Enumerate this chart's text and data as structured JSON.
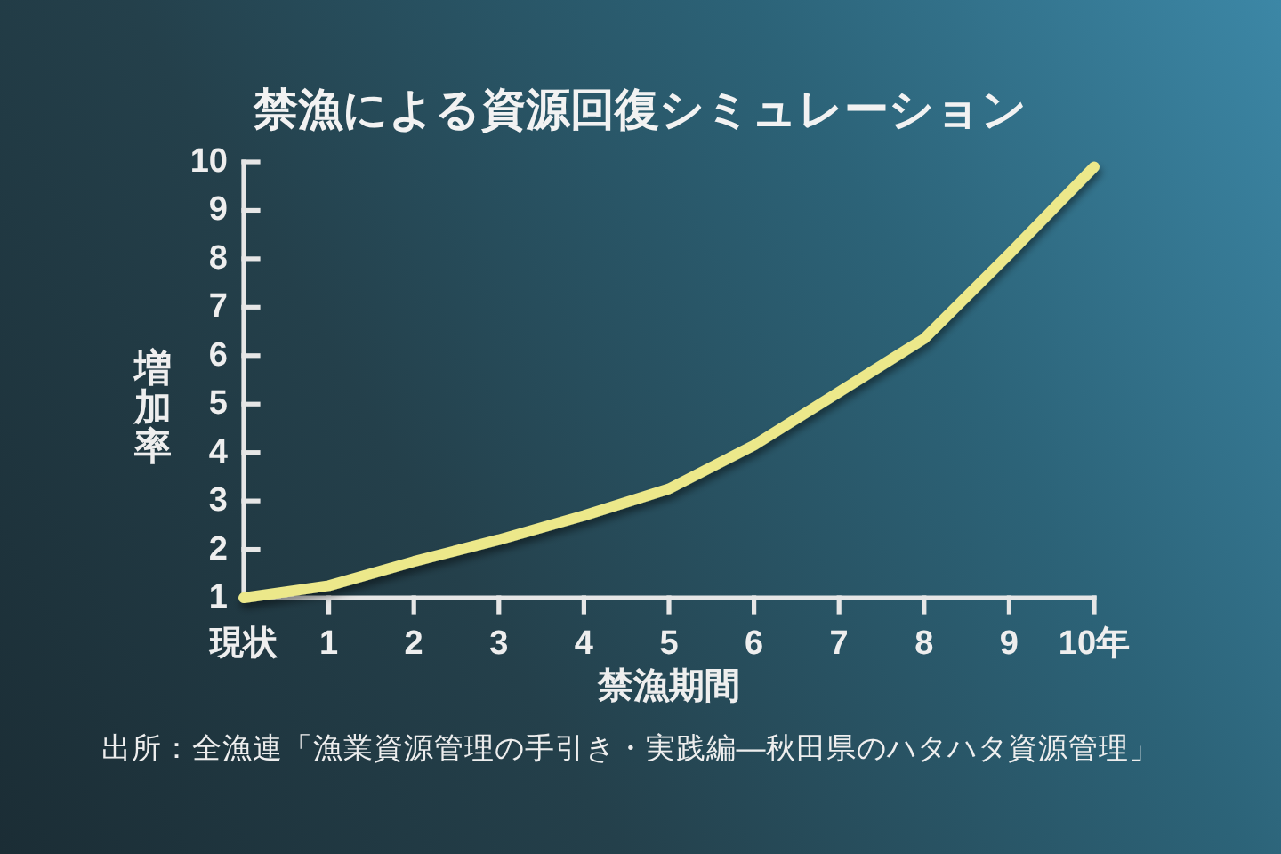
{
  "chart_data": {
    "type": "line",
    "title": "禁漁による資源回復シミュレーション",
    "xlabel": "禁漁期間",
    "ylabel": "増加率",
    "categories": [
      "現状",
      "1",
      "2",
      "3",
      "4",
      "5",
      "6",
      "7",
      "8",
      "9",
      "10年"
    ],
    "series": [
      {
        "color": "#ece88a",
        "values": [
          1.0,
          1.25,
          1.75,
          2.2,
          2.7,
          3.25,
          4.15,
          5.25,
          6.35,
          8.1,
          9.9
        ]
      }
    ],
    "ylim": [
      1,
      10
    ],
    "yticks": [
      1,
      2,
      3,
      4,
      5,
      6,
      7,
      8,
      9,
      10
    ],
    "line_style": "solid",
    "annotations": [
      "出所：全漁連「漁業資源管理の手引き・実践編―秋田県のハタハタ資源管理」"
    ]
  }
}
